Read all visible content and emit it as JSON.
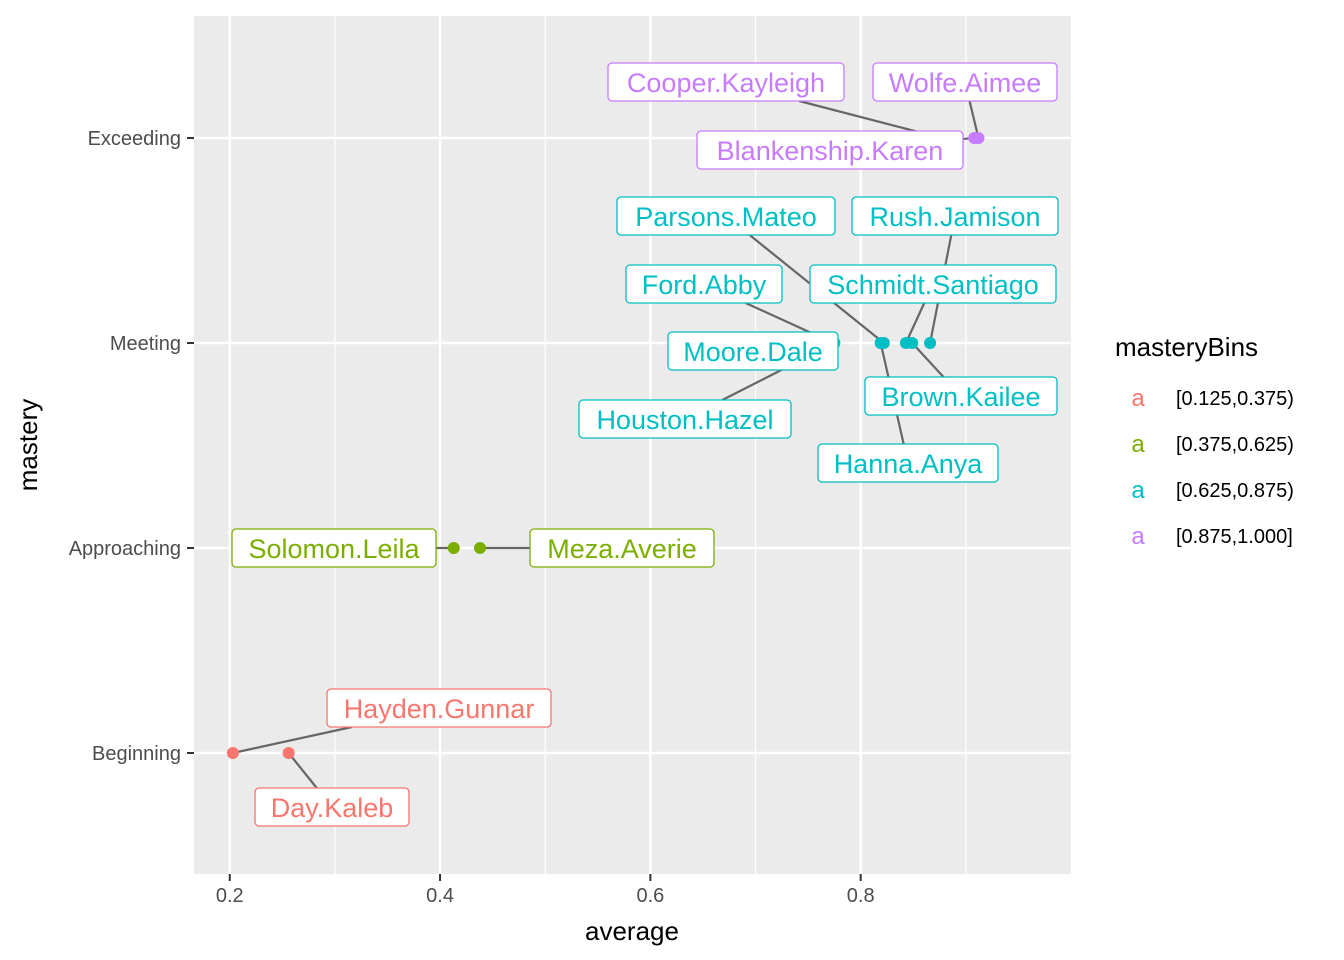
{
  "chart_data": {
    "type": "scatter",
    "xlabel": "average",
    "ylabel": "mastery",
    "xlim": [
      0.166,
      1.0
    ],
    "x_ticks": [
      0.2,
      0.4,
      0.6,
      0.8
    ],
    "x_tick_labels": [
      "0.2",
      "0.4",
      "0.6",
      "0.8"
    ],
    "y_categories": [
      "Beginning",
      "Approaching",
      "Meeting",
      "Exceeding"
    ],
    "grid": true,
    "legend": {
      "title": "masteryBins",
      "placement": "right",
      "key_glyph": "a",
      "entries": [
        {
          "label": "[0.125,0.375)",
          "color": "#F8766D"
        },
        {
          "label": "[0.375,0.625)",
          "color": "#7CAE00"
        },
        {
          "label": "[0.625,0.875)",
          "color": "#00BFC4"
        },
        {
          "label": "[0.875,1.000]",
          "color": "#C77CFF"
        }
      ]
    },
    "points": [
      {
        "name": "Hayden.Gunnar",
        "x": 0.203,
        "y": "Beginning",
        "bin": 0
      },
      {
        "name": "Day.Kaleb",
        "x": 0.256,
        "y": "Beginning",
        "bin": 0
      },
      {
        "name": "Solomon.Leila",
        "x": 0.413,
        "y": "Approaching",
        "bin": 1
      },
      {
        "name": "Meza.Averie",
        "x": 0.438,
        "y": "Approaching",
        "bin": 1
      },
      {
        "name": "Moore.Dale",
        "x": 0.752,
        "y": "Meeting",
        "bin": 2
      },
      {
        "name": "Ford.Abby",
        "x": 0.774,
        "y": "Meeting",
        "bin": 2
      },
      {
        "name": "Houston.Hazel",
        "x": 0.775,
        "y": "Meeting",
        "bin": 2
      },
      {
        "name": "Hanna.Anya",
        "x": 0.819,
        "y": "Meeting",
        "bin": 2
      },
      {
        "name": "Parsons.Mateo",
        "x": 0.822,
        "y": "Meeting",
        "bin": 2
      },
      {
        "name": "Schmidt.Santiago",
        "x": 0.843,
        "y": "Meeting",
        "bin": 2
      },
      {
        "name": "Brown.Kailee",
        "x": 0.849,
        "y": "Meeting",
        "bin": 2
      },
      {
        "name": "Rush.Jamison",
        "x": 0.866,
        "y": "Meeting",
        "bin": 2
      },
      {
        "name": "Cooper.Kayleigh",
        "x": 0.877,
        "y": "Exceeding",
        "bin": 3
      },
      {
        "name": "Blankenship.Karen",
        "x": 0.908,
        "y": "Exceeding",
        "bin": 3
      },
      {
        "name": "Wolfe.Aimee",
        "x": 0.912,
        "y": "Exceeding",
        "bin": 3
      }
    ]
  }
}
